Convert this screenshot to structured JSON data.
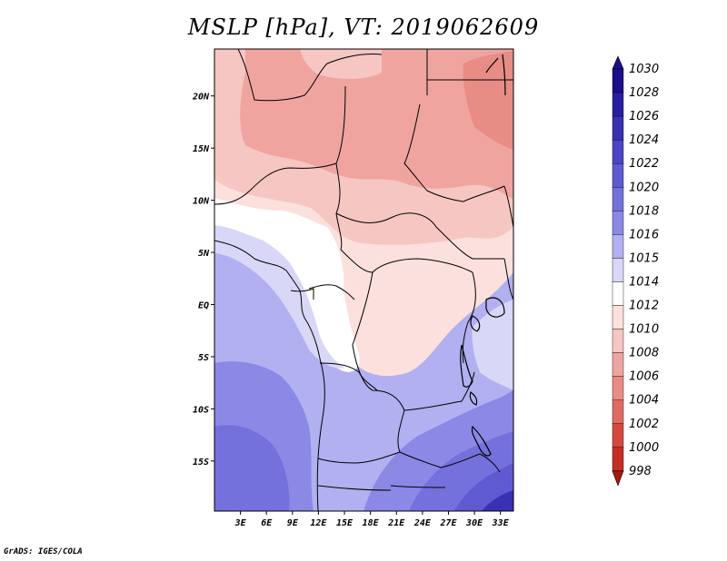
{
  "title": "MSLP [hPa], VT: 2019062609",
  "credit": "GrADS: IGES/COLA",
  "map": {
    "lat_ticks": [
      {
        "lat": 20,
        "label": "20N"
      },
      {
        "lat": 15,
        "label": "15N"
      },
      {
        "lat": 10,
        "label": "10N"
      },
      {
        "lat": 5,
        "label": "5N"
      },
      {
        "lat": 0,
        "label": "EQ"
      },
      {
        "lat": -5,
        "label": "5S"
      },
      {
        "lat": -10,
        "label": "10S"
      },
      {
        "lat": -15,
        "label": "15S"
      }
    ],
    "lon_ticks": [
      {
        "lon": 3,
        "label": "3E"
      },
      {
        "lon": 6,
        "label": "6E"
      },
      {
        "lon": 9,
        "label": "9E"
      },
      {
        "lon": 12,
        "label": "12E"
      },
      {
        "lon": 15,
        "label": "15E"
      },
      {
        "lon": 18,
        "label": "18E"
      },
      {
        "lon": 21,
        "label": "21E"
      },
      {
        "lon": 24,
        "label": "24E"
      },
      {
        "lon": 27,
        "label": "27E"
      },
      {
        "lon": 30,
        "label": "30E"
      },
      {
        "lon": 33,
        "label": "33E"
      }
    ],
    "lon_range": [
      0,
      34.5
    ],
    "lat_range": [
      -19.8,
      24.5
    ]
  },
  "colorbar": {
    "levels": [
      {
        "label": "1030",
        "color": "#1c0f8a"
      },
      {
        "label": "1028",
        "color": "#2a1ea0"
      },
      {
        "label": "1026",
        "color": "#3a30b4"
      },
      {
        "label": "1024",
        "color": "#4c44c4"
      },
      {
        "label": "1022",
        "color": "#5f5ad2"
      },
      {
        "label": "1020",
        "color": "#7470dc"
      },
      {
        "label": "1018",
        "color": "#8b88e6"
      },
      {
        "label": "1016",
        "color": "#b2b0f0"
      },
      {
        "label": "1015",
        "color": "#d8d7f8"
      },
      {
        "label": "1014",
        "color": "#ffffff"
      },
      {
        "label": "1012",
        "color": "#fbe0dd"
      },
      {
        "label": "1010",
        "color": "#f6c6c2"
      },
      {
        "label": "1008",
        "color": "#f0a4a0"
      },
      {
        "label": "1006",
        "color": "#e88c86"
      },
      {
        "label": "1004",
        "color": "#e06a62"
      },
      {
        "label": "1002",
        "color": "#d6483e"
      },
      {
        "label": "1000",
        "color": "#c62e24"
      },
      {
        "label": "998",
        "color": "#a8180e"
      }
    ],
    "top_color": "#1c0f8a",
    "bottom_color": "#a8180e"
  }
}
